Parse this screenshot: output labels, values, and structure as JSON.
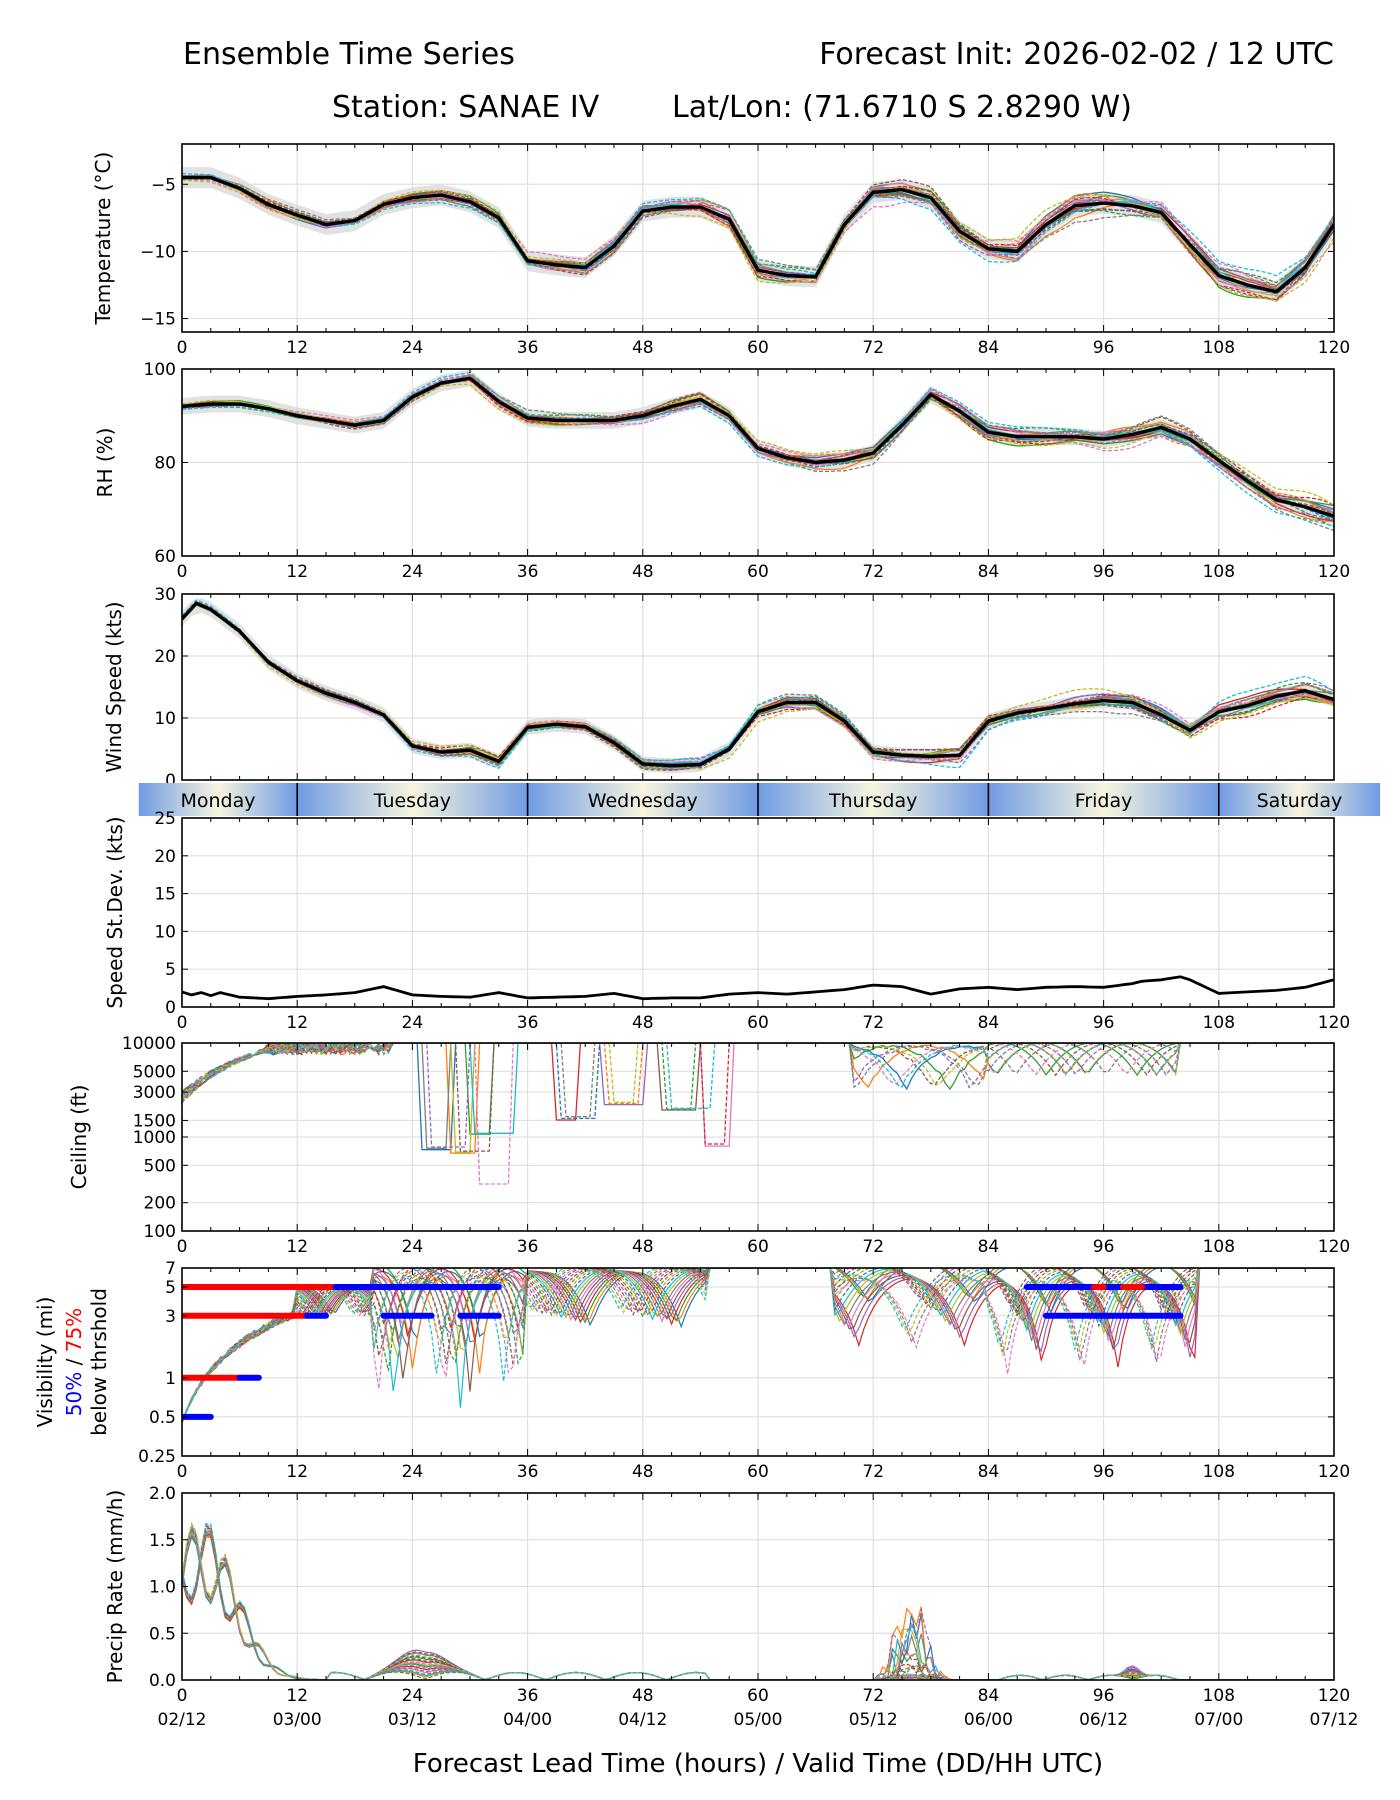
{
  "header": {
    "left_title": "Ensemble Time Series",
    "right_title": "Forecast Init: 2026-02-02 / 12 UTC",
    "station": "Station: SANAE IV",
    "latlon": "Lat/Lon: (71.6710 S 2.8290 W)"
  },
  "xaxis": {
    "ticks": [
      0,
      12,
      24,
      36,
      48,
      60,
      72,
      84,
      96,
      108,
      120
    ],
    "valid_times": [
      "02/12",
      "03/00",
      "03/12",
      "04/00",
      "04/12",
      "05/00",
      "05/12",
      "06/00",
      "06/12",
      "07/00",
      "07/12"
    ],
    "label": "Forecast Lead Time (hours) / Valid Time (DD/HH UTC)"
  },
  "days": [
    {
      "label": "Monday",
      "start": -4.5,
      "end": 12
    },
    {
      "label": "Tuesday",
      "start": 12,
      "end": 36
    },
    {
      "label": "Wednesday",
      "start": 36,
      "end": 60
    },
    {
      "label": "Thursday",
      "start": 60,
      "end": 84
    },
    {
      "label": "Friday",
      "start": 84,
      "end": 108
    },
    {
      "label": "Saturday",
      "start": 108,
      "end": 124.8
    }
  ],
  "member_colors": [
    "#1f77b4",
    "#ff7f0e",
    "#2ca02c",
    "#d62728",
    "#9467bd",
    "#8c564b",
    "#e377c2",
    "#7f7f7f",
    "#bcbd22",
    "#17becf"
  ],
  "threshold_colors": {
    "p50": "#0000ff",
    "p75": "#ff0000"
  },
  "chart_data": [
    {
      "id": "temperature",
      "type": "line",
      "ylabel": "Temperature (°C)",
      "ylim": [
        -16,
        -2
      ],
      "yticks": [
        -15,
        -10,
        -5
      ],
      "ytick_labels": [
        "−15",
        "−10",
        "−5"
      ],
      "mean": {
        "x": [
          0,
          3,
          6,
          9,
          12,
          15,
          18,
          21,
          24,
          27,
          30,
          33,
          36,
          39,
          42,
          45,
          48,
          51,
          54,
          57,
          60,
          63,
          66,
          69,
          72,
          75,
          78,
          81,
          84,
          87,
          90,
          93,
          96,
          99,
          102,
          105,
          108,
          111,
          114,
          117,
          120
        ],
        "y": [
          -4.5,
          -4.5,
          -5.3,
          -6.5,
          -7.3,
          -8.0,
          -7.7,
          -6.5,
          -6.0,
          -5.8,
          -6.3,
          -7.5,
          -10.7,
          -11.0,
          -11.2,
          -9.6,
          -7.0,
          -6.7,
          -6.7,
          -7.6,
          -11.4,
          -11.8,
          -11.9,
          -8.0,
          -5.6,
          -5.4,
          -6.0,
          -8.5,
          -9.8,
          -10.0,
          -8.0,
          -6.6,
          -6.4,
          -6.6,
          -7.1,
          -9.5,
          -11.8,
          -12.5,
          -13.0,
          -11.2,
          -8.0
        ]
      },
      "spread": 1.3
    },
    {
      "id": "rh",
      "type": "line",
      "ylabel": "RH (%)",
      "ylim": [
        60,
        100
      ],
      "yticks": [
        60,
        80,
        100
      ],
      "ytick_labels": [
        "60",
        "80",
        "100"
      ],
      "mean": {
        "x": [
          0,
          3,
          6,
          9,
          12,
          15,
          18,
          21,
          24,
          27,
          30,
          33,
          36,
          39,
          42,
          45,
          48,
          51,
          54,
          57,
          60,
          63,
          66,
          69,
          72,
          75,
          78,
          81,
          84,
          87,
          90,
          93,
          96,
          99,
          102,
          105,
          108,
          111,
          114,
          117,
          120
        ],
        "y": [
          92,
          92.5,
          92.5,
          91.5,
          90,
          89,
          88,
          89,
          94,
          97,
          98,
          93,
          89.5,
          89,
          89,
          89,
          90,
          92,
          93.5,
          90,
          83,
          81,
          80,
          80.5,
          82,
          88,
          94.5,
          91,
          86.5,
          85.5,
          85.5,
          85.5,
          85,
          86,
          87.5,
          85,
          80.5,
          76,
          72,
          70.5,
          68.5
        ]
      },
      "spread": 3
    },
    {
      "id": "wind_speed",
      "type": "line",
      "ylabel": "Wind Speed (kts)",
      "ylim": [
        0,
        30
      ],
      "yticks": [
        0,
        10,
        20,
        30
      ],
      "ytick_labels": [
        "0",
        "10",
        "20",
        "30"
      ],
      "mean": {
        "x": [
          0,
          1.5,
          3,
          6,
          9,
          12,
          15,
          18,
          21,
          24,
          27,
          30,
          33,
          36,
          39,
          42,
          45,
          48,
          51,
          54,
          57,
          60,
          63,
          66,
          69,
          72,
          75,
          78,
          81,
          84,
          87,
          90,
          93,
          96,
          99,
          102,
          105,
          108,
          111,
          114,
          117,
          120
        ],
        "y": [
          26,
          28.5,
          27.5,
          24,
          19,
          16,
          14,
          12.5,
          10.5,
          5.5,
          4.5,
          4.8,
          3,
          8.5,
          9,
          8.6,
          6,
          2.6,
          2.3,
          2.5,
          5,
          11,
          12.5,
          12.5,
          9.5,
          4.5,
          4,
          3.8,
          4,
          9.5,
          10.8,
          11.5,
          12.3,
          12.8,
          12.5,
          10.5,
          8,
          11,
          12,
          13.5,
          14.4,
          13
        ]
      },
      "spread": 2
    },
    {
      "id": "speed_stdev",
      "type": "line",
      "ylabel": "Speed St.Dev. (kts)",
      "ylim": [
        0,
        25
      ],
      "yticks": [
        0,
        5,
        10,
        15,
        20,
        25
      ],
      "ytick_labels": [
        "0",
        "5",
        "10",
        "15",
        "20",
        "25"
      ],
      "mean": {
        "x": [
          0,
          1,
          2,
          3,
          4,
          6,
          9,
          12,
          15,
          18,
          21,
          24,
          27,
          30,
          33,
          36,
          39,
          42,
          45,
          48,
          51,
          54,
          57,
          60,
          63,
          66,
          69,
          72,
          75,
          78,
          81,
          84,
          87,
          90,
          93,
          96,
          99,
          100,
          102,
          104,
          105,
          108,
          111,
          114,
          117,
          120
        ],
        "y": [
          2.0,
          1.6,
          1.9,
          1.5,
          1.9,
          1.3,
          1.1,
          1.4,
          1.6,
          1.9,
          2.7,
          1.6,
          1.4,
          1.3,
          1.9,
          1.2,
          1.3,
          1.4,
          1.8,
          1.1,
          1.2,
          1.2,
          1.7,
          1.9,
          1.7,
          2.0,
          2.3,
          2.9,
          2.7,
          1.7,
          2.4,
          2.6,
          2.3,
          2.6,
          2.7,
          2.6,
          3.1,
          3.4,
          3.6,
          4.0,
          3.6,
          1.8,
          2.0,
          2.2,
          2.6,
          3.6
        ]
      }
    },
    {
      "id": "ceiling",
      "type": "line",
      "ylabel": "Ceiling (ft)",
      "yscale": "log",
      "ylim": [
        100,
        10000
      ],
      "yticks": [
        100,
        200,
        500,
        1000,
        1500,
        3000,
        5000,
        10000
      ],
      "ytick_labels": [
        "100",
        "200",
        "500",
        "1000",
        "1500",
        "3000",
        "5000",
        "10000"
      ]
    },
    {
      "id": "visibility",
      "type": "line",
      "ylabel": "Visibility (mi)",
      "ylabel_blue": "50%",
      "ylabel_sep": " / ",
      "ylabel_red": "75%",
      "ylabel_line3": "below thrshold",
      "yscale": "log",
      "ylim": [
        0.25,
        7
      ],
      "yticks": [
        0.25,
        0.5,
        1,
        3,
        5,
        7
      ],
      "ytick_labels": [
        "0.25",
        "0.5",
        "1",
        "3",
        "5",
        "7"
      ],
      "threshold_segments": [
        {
          "level": 5,
          "color": "red",
          "start": 0,
          "end": 16
        },
        {
          "level": 5,
          "color": "blue",
          "start": 16,
          "end": 33
        },
        {
          "level": 3,
          "color": "red",
          "start": 0,
          "end": 13
        },
        {
          "level": 3,
          "color": "blue",
          "start": 13,
          "end": 15
        },
        {
          "level": 3,
          "color": "blue",
          "start": 21,
          "end": 26
        },
        {
          "level": 3,
          "color": "blue",
          "start": 29,
          "end": 33
        },
        {
          "level": 1,
          "color": "red",
          "start": 0,
          "end": 6
        },
        {
          "level": 1,
          "color": "blue",
          "start": 6,
          "end": 8
        },
        {
          "level": 0.5,
          "color": "blue",
          "start": 0,
          "end": 3
        },
        {
          "level": 5,
          "color": "blue",
          "start": 88,
          "end": 104
        },
        {
          "level": 5,
          "color": "red",
          "start": 95,
          "end": 96
        },
        {
          "level": 5,
          "color": "red",
          "start": 98,
          "end": 100
        },
        {
          "level": 3,
          "color": "blue",
          "start": 90,
          "end": 104
        }
      ]
    },
    {
      "id": "precip",
      "type": "line",
      "ylabel": "Precip Rate (mm/h)",
      "ylim": [
        0,
        2.0
      ],
      "yticks": [
        0,
        0.5,
        1.0,
        1.5,
        2.0
      ],
      "ytick_labels": [
        "0.0",
        "0.5",
        "1.0",
        "1.5",
        "2.0"
      ]
    }
  ]
}
